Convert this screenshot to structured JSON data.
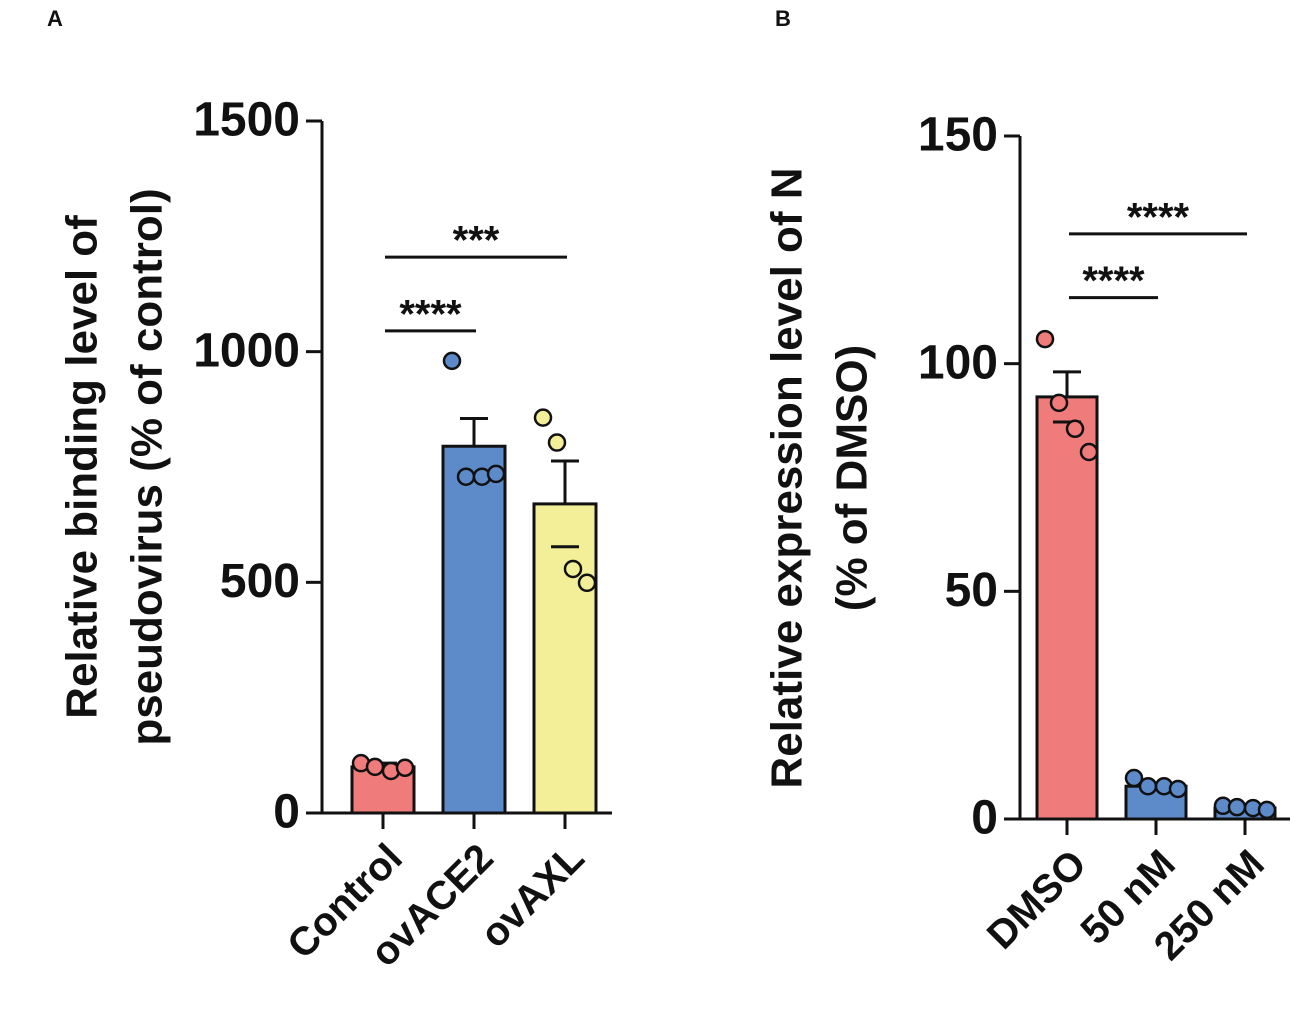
{
  "chart_data": [
    {
      "type": "bar",
      "panel": "A",
      "ylabel": [
        "Relative binding level of",
        "pseudovirus (% of control)"
      ],
      "categories": [
        "Control",
        "ovACE2",
        "ovAXL"
      ],
      "values": [
        100,
        795,
        670
      ],
      "errors": [
        8,
        60,
        93
      ],
      "points": [
        [
          108,
          100,
          91,
          98
        ],
        [
          980,
          729,
          729,
          735
        ],
        [
          857,
          803,
          529,
          499
        ]
      ],
      "colors": [
        "#f07b7b",
        "#5d8bca",
        "#f3ef98"
      ],
      "ylim": [
        0,
        1500
      ],
      "yticks": [
        0,
        500,
        1000,
        1500
      ],
      "significance": [
        {
          "text": "****",
          "from": "Control",
          "to": "ovACE2",
          "y": 1045
        },
        {
          "text": "***",
          "from": "Control",
          "to": "ovAXL",
          "y": 1205
        }
      ]
    },
    {
      "type": "bar",
      "panel": "B",
      "ylabel": [
        "Relative expression level of N",
        "(% of DMSO)"
      ],
      "categories": [
        "DMSO",
        "50 nM",
        "250 nM"
      ],
      "values": [
        92.7,
        7.2,
        2.4
      ],
      "errors": [
        5.5,
        0.6,
        0.2
      ],
      "points": [
        [
          105.4,
          91.4,
          85.7,
          80.6
        ],
        [
          9,
          7.2,
          7.2,
          6.6
        ],
        [
          2.9,
          2.6,
          2.4,
          2
        ]
      ],
      "colors": [
        "#f07b7b",
        "#5d8bca",
        "#5d8bca"
      ],
      "ylim": [
        0,
        150
      ],
      "yticks": [
        0,
        50,
        100,
        150
      ],
      "significance": [
        {
          "text": "****",
          "from": "DMSO",
          "to": "50 nM",
          "y": 114.5
        },
        {
          "text": "****",
          "from": "DMSO",
          "to": "250 nM",
          "y": 128.5
        }
      ]
    }
  ]
}
